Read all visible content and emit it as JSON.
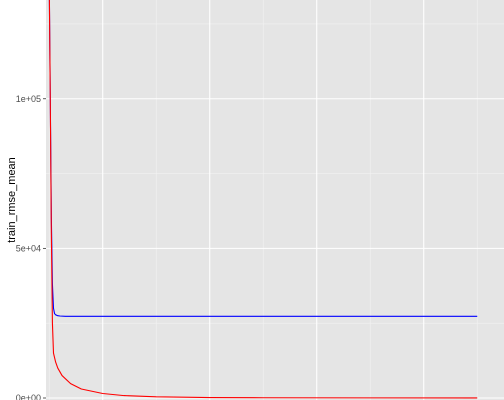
{
  "chart_data": {
    "type": "line",
    "title": "",
    "xlabel": "",
    "ylabel": "train_rmse_mean",
    "ylim": [
      0,
      133000
    ],
    "xlim": [
      -3,
      425
    ],
    "y_ticks": [
      {
        "value": 0,
        "label": "0e+00"
      },
      {
        "value": 50000,
        "label": "5e+04"
      },
      {
        "value": 100000,
        "label": "1e+05"
      }
    ],
    "x_major_gridlines": [
      50,
      150,
      250,
      350
    ],
    "x_minor_gridlines": [
      0,
      100,
      200,
      300,
      400
    ],
    "y_minor_gridlines": [
      25000,
      75000,
      125000
    ],
    "grid": true,
    "legend": "none",
    "background": "#e5e5e5",
    "series": [
      {
        "color": "#0000ff",
        "x": [
          0,
          1,
          2,
          3,
          4,
          5,
          6,
          8,
          10,
          15,
          20,
          30,
          50,
          100,
          200,
          300,
          400
        ],
        "y": [
          140000,
          100000,
          60000,
          38000,
          30000,
          28200,
          27800,
          27500,
          27400,
          27300,
          27300,
          27300,
          27300,
          27300,
          27300,
          27300,
          27300
        ]
      },
      {
        "color": "#ff0000",
        "x": [
          0,
          1,
          2,
          3,
          4,
          6,
          8,
          12,
          20,
          30,
          50,
          70,
          100,
          150,
          200,
          300,
          400
        ],
        "y": [
          140000,
          100000,
          55000,
          25000,
          15000,
          12000,
          10000,
          7500,
          4800,
          3000,
          1500,
          800,
          400,
          150,
          80,
          40,
          20
        ]
      }
    ]
  }
}
